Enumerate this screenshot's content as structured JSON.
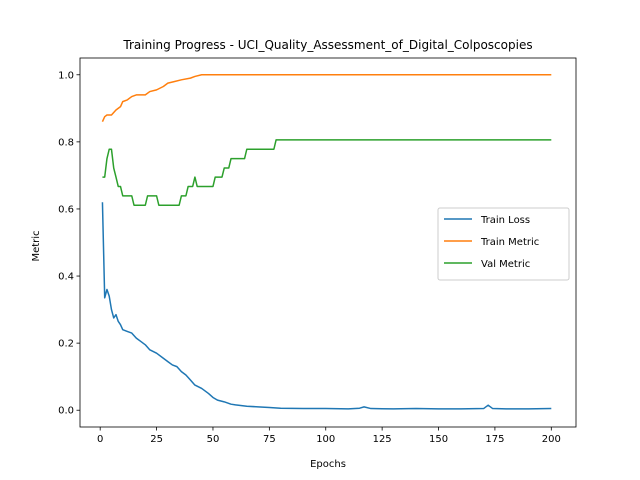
{
  "chart_data": {
    "type": "line",
    "title": "Training Progress - UCI_Quality_Assessment_of_Digital_Colposcopies",
    "xlabel": "Epochs",
    "ylabel": "Metric",
    "xlim": [
      -8.95,
      210.95
    ],
    "ylim": [
      -0.05,
      1.05
    ],
    "xticks": [
      0,
      25,
      50,
      75,
      100,
      125,
      150,
      175,
      200
    ],
    "yticks": [
      0.0,
      0.2,
      0.4,
      0.6,
      0.8,
      1.0
    ],
    "xtick_labels": [
      "0",
      "25",
      "50",
      "75",
      "100",
      "125",
      "150",
      "175",
      "200"
    ],
    "ytick_labels": [
      "0.0",
      "0.2",
      "0.4",
      "0.6",
      "0.8",
      "1.0"
    ],
    "grid": false,
    "legend_position": "center-right",
    "series": [
      {
        "name": "Train Loss",
        "color": "#1f77b4",
        "points": [
          [
            1,
            0.62
          ],
          [
            2,
            0.335
          ],
          [
            3,
            0.36
          ],
          [
            4,
            0.34
          ],
          [
            5,
            0.3
          ],
          [
            6,
            0.275
          ],
          [
            7,
            0.285
          ],
          [
            8,
            0.265
          ],
          [
            9,
            0.255
          ],
          [
            10,
            0.24
          ],
          [
            12,
            0.235
          ],
          [
            14,
            0.23
          ],
          [
            16,
            0.215
          ],
          [
            18,
            0.205
          ],
          [
            20,
            0.195
          ],
          [
            22,
            0.18
          ],
          [
            25,
            0.17
          ],
          [
            28,
            0.155
          ],
          [
            30,
            0.145
          ],
          [
            32,
            0.135
          ],
          [
            34,
            0.13
          ],
          [
            36,
            0.115
          ],
          [
            38,
            0.105
          ],
          [
            40,
            0.09
          ],
          [
            42,
            0.075
          ],
          [
            45,
            0.065
          ],
          [
            48,
            0.05
          ],
          [
            50,
            0.038
          ],
          [
            52,
            0.03
          ],
          [
            55,
            0.025
          ],
          [
            58,
            0.018
          ],
          [
            60,
            0.016
          ],
          [
            65,
            0.012
          ],
          [
            70,
            0.01
          ],
          [
            75,
            0.008
          ],
          [
            80,
            0.006
          ],
          [
            90,
            0.005
          ],
          [
            100,
            0.005
          ],
          [
            110,
            0.004
          ],
          [
            115,
            0.006
          ],
          [
            117,
            0.01
          ],
          [
            120,
            0.005
          ],
          [
            130,
            0.004
          ],
          [
            140,
            0.005
          ],
          [
            150,
            0.004
          ],
          [
            160,
            0.004
          ],
          [
            170,
            0.005
          ],
          [
            172,
            0.015
          ],
          [
            174,
            0.005
          ],
          [
            180,
            0.004
          ],
          [
            190,
            0.004
          ],
          [
            200,
            0.005
          ]
        ]
      },
      {
        "name": "Train Metric",
        "color": "#ff7f0e",
        "points": [
          [
            1,
            0.86
          ],
          [
            2,
            0.875
          ],
          [
            3,
            0.88
          ],
          [
            5,
            0.88
          ],
          [
            7,
            0.895
          ],
          [
            9,
            0.905
          ],
          [
            10,
            0.92
          ],
          [
            12,
            0.925
          ],
          [
            14,
            0.935
          ],
          [
            16,
            0.94
          ],
          [
            20,
            0.94
          ],
          [
            22,
            0.95
          ],
          [
            25,
            0.955
          ],
          [
            28,
            0.965
          ],
          [
            30,
            0.975
          ],
          [
            33,
            0.98
          ],
          [
            36,
            0.985
          ],
          [
            40,
            0.99
          ],
          [
            42,
            0.995
          ],
          [
            45,
            1.0
          ],
          [
            200,
            1.0
          ]
        ]
      },
      {
        "name": "Val Metric",
        "color": "#2ca02c",
        "points": [
          [
            1,
            0.695
          ],
          [
            2,
            0.695
          ],
          [
            3,
            0.75
          ],
          [
            4,
            0.778
          ],
          [
            5,
            0.778
          ],
          [
            6,
            0.722
          ],
          [
            7,
            0.695
          ],
          [
            8,
            0.667
          ],
          [
            9,
            0.667
          ],
          [
            10,
            0.639
          ],
          [
            14,
            0.639
          ],
          [
            15,
            0.611
          ],
          [
            20,
            0.611
          ],
          [
            21,
            0.639
          ],
          [
            25,
            0.639
          ],
          [
            26,
            0.611
          ],
          [
            35,
            0.611
          ],
          [
            36,
            0.639
          ],
          [
            38,
            0.639
          ],
          [
            39,
            0.667
          ],
          [
            41,
            0.667
          ],
          [
            42,
            0.695
          ],
          [
            43,
            0.667
          ],
          [
            50,
            0.667
          ],
          [
            51,
            0.695
          ],
          [
            54,
            0.695
          ],
          [
            55,
            0.722
          ],
          [
            57,
            0.722
          ],
          [
            58,
            0.75
          ],
          [
            64,
            0.75
          ],
          [
            65,
            0.778
          ],
          [
            77,
            0.778
          ],
          [
            78,
            0.806
          ],
          [
            200,
            0.806
          ]
        ]
      }
    ]
  }
}
